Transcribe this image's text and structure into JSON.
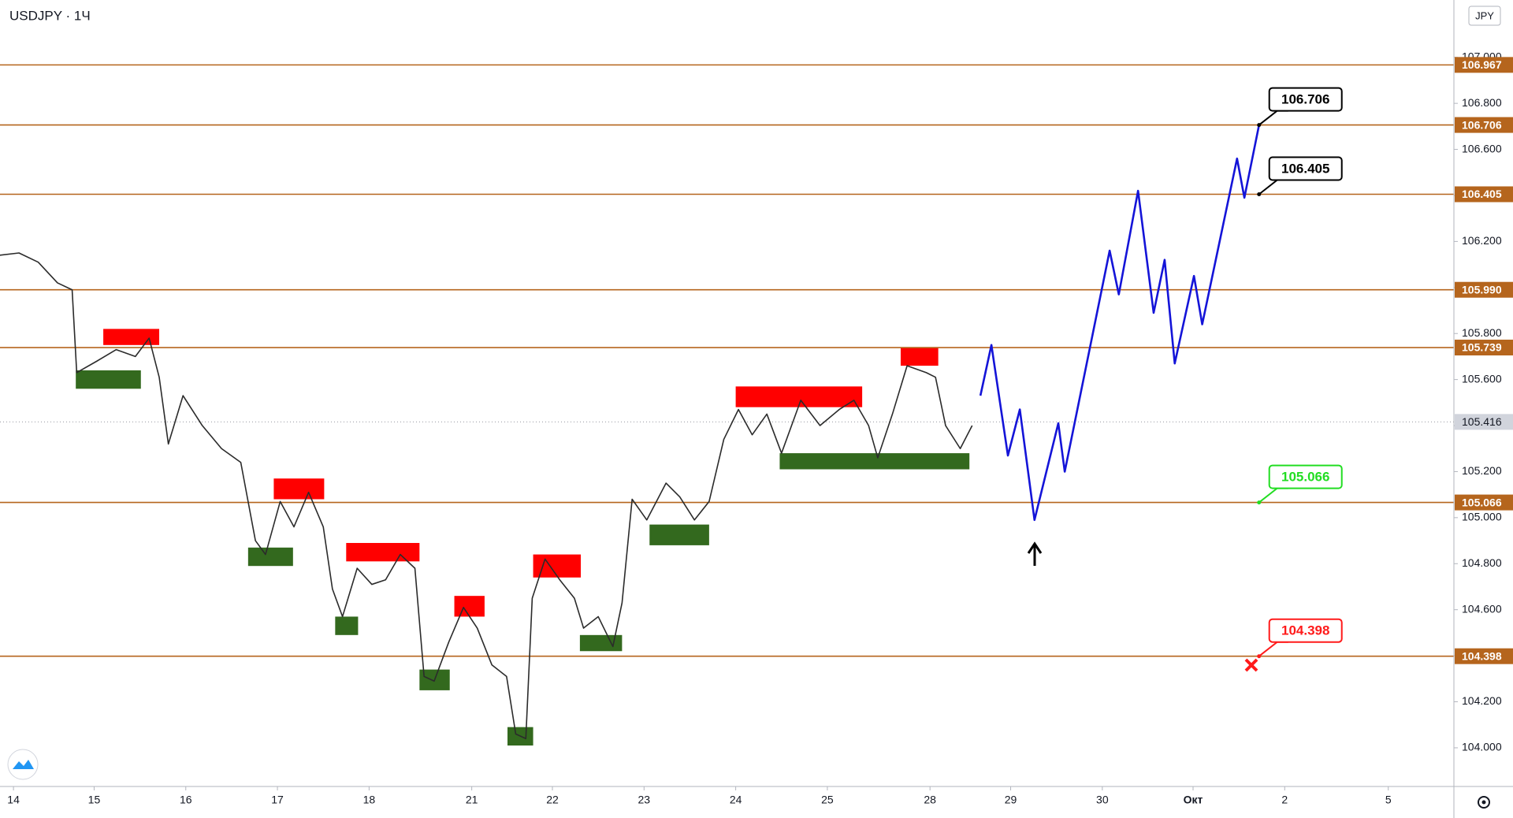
{
  "chart_data": {
    "type": "line",
    "title": "USDJPY · 1Ч",
    "currency": "JPY",
    "grid": false,
    "xlim": [
      -0.147,
      15.716
    ],
    "ylim": [
      103.832,
      107.249
    ],
    "xticks": [
      {
        "value": 0,
        "label": "14"
      },
      {
        "value": 0.88,
        "label": "15"
      },
      {
        "value": 1.88,
        "label": "16"
      },
      {
        "value": 2.88,
        "label": "17"
      },
      {
        "value": 3.88,
        "label": "18"
      },
      {
        "value": 5.0,
        "label": "21"
      },
      {
        "value": 5.88,
        "label": "22"
      },
      {
        "value": 6.88,
        "label": "23"
      },
      {
        "value": 7.88,
        "label": "24"
      },
      {
        "value": 8.88,
        "label": "25"
      },
      {
        "value": 10.0,
        "label": "28"
      },
      {
        "value": 10.88,
        "label": "29"
      },
      {
        "value": 11.88,
        "label": "30"
      },
      {
        "value": 12.87,
        "label": "Окт"
      },
      {
        "value": 13.87,
        "label": "2"
      },
      {
        "value": 15.0,
        "label": "5"
      }
    ],
    "yticks": [
      {
        "value": 104.0,
        "label": "104.000"
      },
      {
        "value": 104.2,
        "label": "104.200"
      },
      {
        "value": 104.4,
        "label": "104.400"
      },
      {
        "value": 104.6,
        "label": "104.600"
      },
      {
        "value": 104.8,
        "label": "104.800"
      },
      {
        "value": 105.0,
        "label": "105.000"
      },
      {
        "value": 105.2,
        "label": "105.200"
      },
      {
        "value": 105.4,
        "label": "105.400"
      },
      {
        "value": 105.6,
        "label": "105.600"
      },
      {
        "value": 105.8,
        "label": "105.800"
      },
      {
        "value": 106.0,
        "label": "106.000"
      },
      {
        "value": 106.2,
        "label": "106.200"
      },
      {
        "value": 106.4,
        "label": "106.400"
      },
      {
        "value": 106.6,
        "label": "106.600"
      },
      {
        "value": 106.8,
        "label": "106.800"
      },
      {
        "value": 107.0,
        "label": "107.000"
      }
    ],
    "price": {
      "color": "#2b2b2b",
      "x": [
        -0.15,
        0.06,
        0.27,
        0.48,
        0.64,
        0.69,
        0.91,
        1.12,
        1.33,
        1.48,
        1.59,
        1.69,
        1.85,
        2.06,
        2.27,
        2.48,
        2.64,
        2.75,
        2.91,
        3.06,
        3.22,
        3.38,
        3.48,
        3.59,
        3.75,
        3.91,
        4.06,
        4.22,
        4.38,
        4.48,
        4.59,
        4.75,
        4.91,
        5.06,
        5.22,
        5.38,
        5.48,
        5.59,
        5.66,
        5.8,
        5.96,
        6.12,
        6.22,
        6.38,
        6.54,
        6.64,
        6.75,
        6.91,
        7.12,
        7.27,
        7.43,
        7.59,
        7.75,
        7.91,
        8.06,
        8.22,
        8.38,
        8.59,
        8.8,
        9.01,
        9.17,
        9.33,
        9.43,
        9.59,
        9.75,
        9.96,
        10.06,
        10.17,
        10.33,
        10.46
      ],
      "values": [
        106.14,
        106.15,
        106.11,
        106.02,
        105.99,
        105.63,
        105.68,
        105.73,
        105.7,
        105.78,
        105.61,
        105.32,
        105.53,
        105.4,
        105.3,
        105.24,
        104.9,
        104.84,
        105.07,
        104.96,
        105.11,
        104.96,
        104.69,
        104.57,
        104.78,
        104.71,
        104.73,
        104.84,
        104.78,
        104.31,
        104.29,
        104.46,
        104.61,
        104.52,
        104.36,
        104.31,
        104.06,
        104.04,
        104.65,
        104.82,
        104.73,
        104.65,
        104.52,
        104.57,
        104.44,
        104.63,
        105.08,
        104.99,
        105.15,
        105.09,
        104.99,
        105.07,
        105.34,
        105.47,
        105.36,
        105.45,
        105.28,
        105.51,
        105.4,
        105.47,
        105.51,
        105.4,
        105.26,
        105.45,
        105.66,
        105.63,
        105.61,
        105.4,
        105.3,
        105.4
      ]
    },
    "forecast": {
      "color": "#1414d8",
      "x": [
        10.55,
        10.67,
        10.85,
        10.98,
        11.14,
        11.4,
        11.47,
        11.96,
        12.06,
        12.27,
        12.44,
        12.56,
        12.67,
        12.88,
        12.97,
        13.35,
        13.43,
        13.59
      ],
      "values": [
        105.53,
        105.75,
        105.27,
        105.47,
        104.99,
        105.41,
        105.2,
        106.16,
        105.97,
        106.42,
        105.89,
        106.12,
        105.67,
        106.05,
        105.84,
        106.56,
        106.39,
        106.706
      ]
    },
    "levels": {
      "color": "#b5651d",
      "values": [
        106.967,
        106.706,
        106.405,
        105.99,
        105.739,
        105.066,
        104.398
      ],
      "value_labels": [
        "106.967",
        "106.706",
        "106.405",
        "105.990",
        "105.739",
        "105.066",
        "104.398"
      ]
    },
    "last_price": 105.416,
    "targets": [
      {
        "x": 13.59,
        "value": 106.706,
        "color": "#000000"
      },
      {
        "x": 13.59,
        "value": 106.405,
        "color": "#000000"
      },
      {
        "x": 13.59,
        "value": 105.066,
        "color": "#22dd22"
      },
      {
        "x": 13.59,
        "value": 104.398,
        "color": "#ff1a1a"
      }
    ],
    "supply_zones": {
      "color": "#ff0000",
      "zones": [
        {
          "x": [
            0.98,
            1.59
          ],
          "y": [
            105.75,
            105.82
          ]
        },
        {
          "x": [
            2.84,
            3.39
          ],
          "y": [
            105.08,
            105.17
          ]
        },
        {
          "x": [
            3.63,
            4.43
          ],
          "y": [
            104.81,
            104.89
          ]
        },
        {
          "x": [
            4.81,
            5.14
          ],
          "y": [
            104.57,
            104.66
          ]
        },
        {
          "x": [
            5.67,
            6.19
          ],
          "y": [
            104.74,
            104.84
          ]
        },
        {
          "x": [
            7.88,
            9.26
          ],
          "y": [
            105.48,
            105.57
          ]
        },
        {
          "x": [
            9.68,
            10.09
          ],
          "y": [
            105.66,
            105.74
          ]
        }
      ]
    },
    "demand_zones": {
      "color": "#33691e",
      "zones": [
        {
          "x": [
            0.68,
            1.39
          ],
          "y": [
            105.56,
            105.64
          ]
        },
        {
          "x": [
            2.56,
            3.05
          ],
          "y": [
            104.79,
            104.87
          ]
        },
        {
          "x": [
            3.51,
            3.76
          ],
          "y": [
            104.49,
            104.57
          ]
        },
        {
          "x": [
            4.43,
            4.76
          ],
          "y": [
            104.25,
            104.34
          ]
        },
        {
          "x": [
            5.39,
            5.67
          ],
          "y": [
            104.01,
            104.09
          ]
        },
        {
          "x": [
            6.18,
            6.64
          ],
          "y": [
            104.42,
            104.49
          ]
        },
        {
          "x": [
            6.94,
            7.59
          ],
          "y": [
            104.88,
            104.97
          ]
        },
        {
          "x": [
            8.36,
            10.43
          ],
          "y": [
            105.21,
            105.28
          ]
        }
      ]
    }
  }
}
